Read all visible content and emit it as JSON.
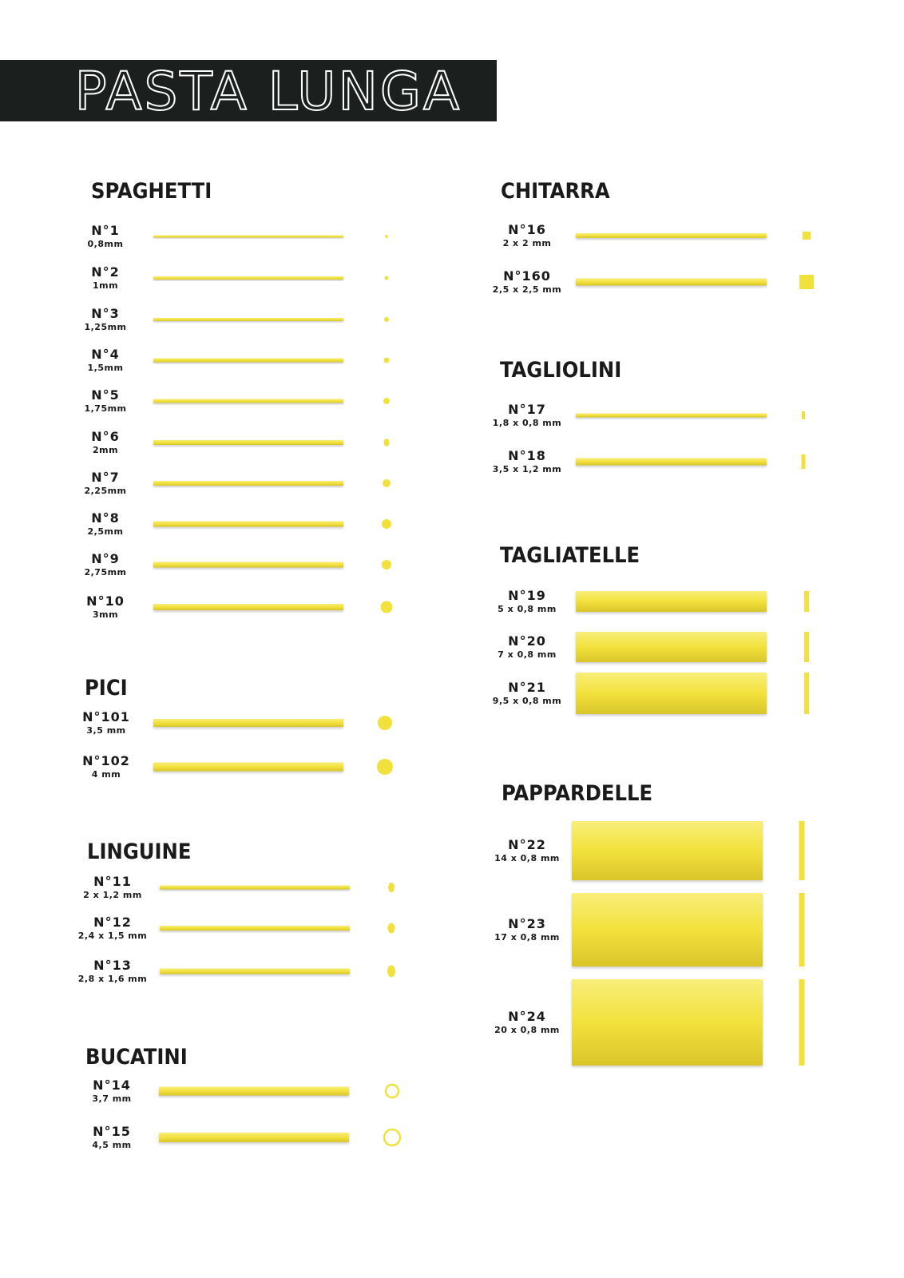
{
  "header": {
    "title": "PASTA LUNGA"
  },
  "sections": [
    {
      "title": "SPAGHETTI",
      "items": [
        {
          "code": "N°1",
          "size": "0,8mm"
        },
        {
          "code": "N°2",
          "size": "1mm"
        },
        {
          "code": "N°3",
          "size": "1,25mm"
        },
        {
          "code": "N°4",
          "size": "1,5mm"
        },
        {
          "code": "N°5",
          "size": "1,75mm"
        },
        {
          "code": "N°6",
          "size": "2mm"
        },
        {
          "code": "N°7",
          "size": "2,25mm"
        },
        {
          "code": "N°8",
          "size": "2,5mm"
        },
        {
          "code": "N°9",
          "size": "2,75mm"
        },
        {
          "code": "N°10",
          "size": "3mm"
        }
      ]
    },
    {
      "title": "PICI",
      "items": [
        {
          "code": "N°101",
          "size": "3,5 mm"
        },
        {
          "code": "N°102",
          "size": "4 mm"
        }
      ]
    },
    {
      "title": "LINGUINE",
      "items": [
        {
          "code": "N°11",
          "size": "2 x 1,2 mm"
        },
        {
          "code": "N°12",
          "size": "2,4 x 1,5 mm"
        },
        {
          "code": "N°13",
          "size": "2,8 x 1,6 mm"
        }
      ]
    },
    {
      "title": "BUCATINI",
      "items": [
        {
          "code": "N°14",
          "size": "3,7 mm"
        },
        {
          "code": "N°15",
          "size": "4,5 mm"
        }
      ]
    },
    {
      "title": "CHITARRA",
      "items": [
        {
          "code": "N°16",
          "size": "2 x 2 mm"
        },
        {
          "code": "N°160",
          "size": "2,5 x 2,5 mm"
        }
      ]
    },
    {
      "title": "TAGLIOLINI",
      "items": [
        {
          "code": "N°17",
          "size": "1,8 x 0,8 mm"
        },
        {
          "code": "N°18",
          "size": "3,5 x 1,2 mm"
        }
      ]
    },
    {
      "title": "TAGLIATELLE",
      "items": [
        {
          "code": "N°19",
          "size": "5 x 0,8 mm"
        },
        {
          "code": "N°20",
          "size": "7 x 0,8 mm"
        },
        {
          "code": "N°21",
          "size": "9,5 x 0,8 mm"
        }
      ]
    },
    {
      "title": "PAPPARDELLE",
      "items": [
        {
          "code": "N°22",
          "size": "14 x 0,8 mm"
        },
        {
          "code": "N°23",
          "size": "17 x 0,8 mm"
        },
        {
          "code": "N°24",
          "size": "20 x 0,8 mm"
        }
      ]
    }
  ]
}
